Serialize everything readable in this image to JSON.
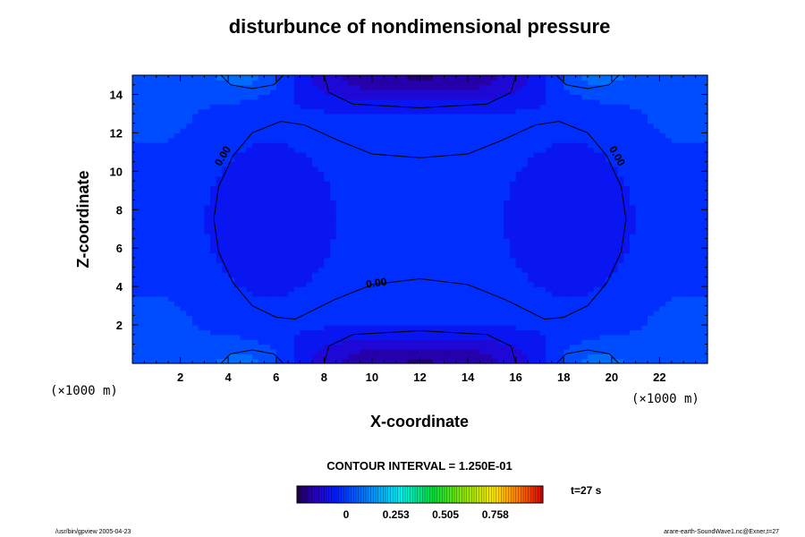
{
  "chart_data": {
    "type": "heatmap",
    "title": "disturbunce of nondimensional pressure",
    "xlabel": "X-coordinate",
    "ylabel": "Z-coordinate",
    "x_unit": "(×1000 m)",
    "y_unit": "(×1000 m)",
    "xlim": [
      0,
      24
    ],
    "ylim": [
      0,
      15
    ],
    "x_ticks": [
      2,
      4,
      6,
      8,
      10,
      12,
      14,
      16,
      18,
      20,
      22
    ],
    "y_ticks": [
      2,
      4,
      6,
      8,
      10,
      12,
      14
    ],
    "contour_interval_text": "CONTOUR INTERVAL = 1.250E-01",
    "contour_label": "0.00",
    "contour_level": 0,
    "time_label": "t=27 s",
    "colorbar": {
      "tick_labels": [
        "0",
        "0.253",
        "0.505",
        "0.758"
      ],
      "tick_values": [
        0,
        0.253,
        0.505,
        0.758
      ],
      "range": [
        -0.25,
        1.0
      ]
    },
    "field_features": [
      {
        "kind": "minimum",
        "x": 12,
        "z": 0,
        "value": -0.2
      },
      {
        "kind": "minimum",
        "x": 12,
        "z": 15,
        "value": -0.2
      },
      {
        "kind": "maximum",
        "x": 5,
        "z": 0,
        "value": 0.12
      },
      {
        "kind": "maximum",
        "x": 19,
        "z": 0,
        "value": 0.12
      },
      {
        "kind": "maximum",
        "x": 5,
        "z": 15,
        "value": 0.12
      },
      {
        "kind": "maximum",
        "x": 19,
        "z": 15,
        "value": 0.12
      },
      {
        "kind": "minimum",
        "x": 5,
        "z": 7.5,
        "value": -0.09
      },
      {
        "kind": "minimum",
        "x": 19,
        "z": 7.5,
        "value": -0.09
      }
    ]
  },
  "footer": {
    "left": "/usr/bin/gpview 2005-04-23",
    "right": "arare-earth-SoundWave1.nc@Exner,t=27"
  }
}
